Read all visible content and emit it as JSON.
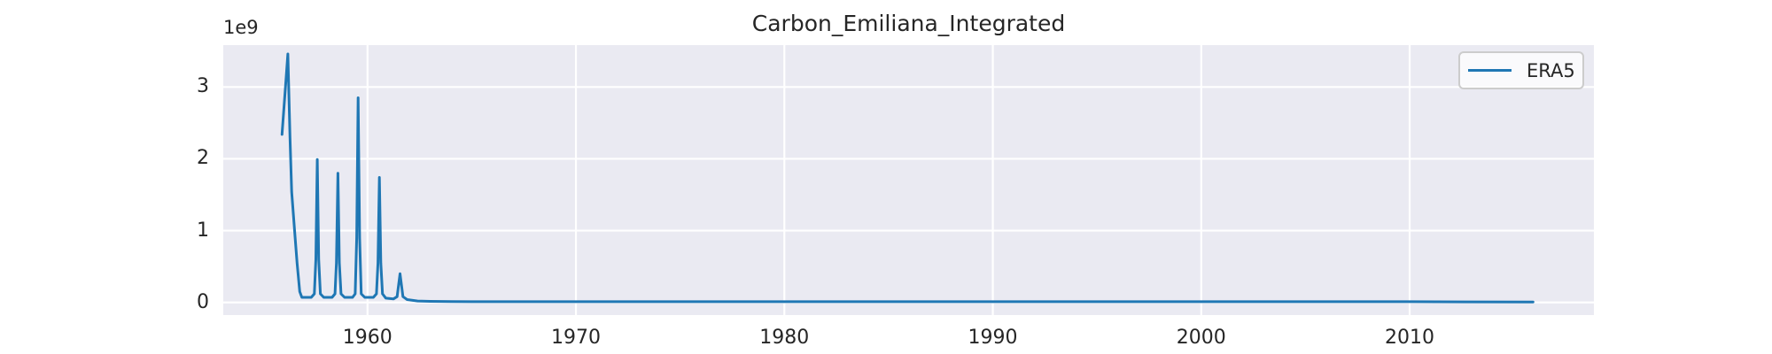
{
  "chart": {
    "title": "Carbon_Emiliana_Integrated",
    "y_offset_label": "1e9"
  },
  "colors": {
    "line": "#1f77b4",
    "axes_background": "#eaeaf2",
    "grid": "#ffffff",
    "text": "#262626",
    "legend_border": "#cccccc",
    "figure_background": "#ffffff"
  },
  "chart_data": {
    "type": "line",
    "title": "Carbon_Emiliana_Integrated",
    "xlabel": "",
    "ylabel": "",
    "y_offset_label": "1e9",
    "y_unit_multiplier": 1000000000,
    "xlim": [
      1953.08,
      2018.84
    ],
    "ylim": [
      -0.176,
      3.583
    ],
    "xticks": [
      1960,
      1970,
      1980,
      1990,
      2000,
      2010
    ],
    "xtick_labels": [
      "1960",
      "1970",
      "1980",
      "1990",
      "2000",
      "2010"
    ],
    "yticks": [
      0,
      1,
      2,
      3
    ],
    "ytick_labels": [
      "0",
      "1",
      "2",
      "3"
    ],
    "grid": true,
    "legend_position": "upper right",
    "series": [
      {
        "name": "ERA5",
        "color": "#1f77b4",
        "points_units_of_1e9": true,
        "points": [
          [
            1955.9,
            2.34
          ],
          [
            1956.18,
            3.46
          ],
          [
            1956.28,
            2.3
          ],
          [
            1956.36,
            1.54
          ],
          [
            1956.5,
            1.0
          ],
          [
            1956.62,
            0.55
          ],
          [
            1956.75,
            0.15
          ],
          [
            1956.85,
            0.07
          ],
          [
            1957.3,
            0.07
          ],
          [
            1957.45,
            0.12
          ],
          [
            1957.52,
            0.6
          ],
          [
            1957.59,
            1.99
          ],
          [
            1957.66,
            0.6
          ],
          [
            1957.74,
            0.12
          ],
          [
            1957.9,
            0.07
          ],
          [
            1958.3,
            0.07
          ],
          [
            1958.44,
            0.12
          ],
          [
            1958.51,
            0.55
          ],
          [
            1958.58,
            1.8
          ],
          [
            1958.65,
            0.55
          ],
          [
            1958.73,
            0.12
          ],
          [
            1958.9,
            0.07
          ],
          [
            1959.28,
            0.07
          ],
          [
            1959.41,
            0.12
          ],
          [
            1959.48,
            0.9
          ],
          [
            1959.55,
            2.85
          ],
          [
            1959.62,
            0.9
          ],
          [
            1959.7,
            0.12
          ],
          [
            1959.87,
            0.07
          ],
          [
            1960.28,
            0.07
          ],
          [
            1960.43,
            0.12
          ],
          [
            1960.5,
            0.55
          ],
          [
            1960.57,
            1.74
          ],
          [
            1960.64,
            0.55
          ],
          [
            1960.72,
            0.12
          ],
          [
            1960.88,
            0.06
          ],
          [
            1961.25,
            0.05
          ],
          [
            1961.42,
            0.08
          ],
          [
            1961.56,
            0.4
          ],
          [
            1961.7,
            0.08
          ],
          [
            1961.9,
            0.04
          ],
          [
            1962.4,
            0.02
          ],
          [
            1963.0,
            0.015
          ],
          [
            1965.0,
            0.01
          ],
          [
            1970.0,
            0.01
          ],
          [
            1980.0,
            0.01
          ],
          [
            1990.0,
            0.01
          ],
          [
            2000.0,
            0.01
          ],
          [
            2010.0,
            0.01
          ],
          [
            2015.92,
            0.005
          ]
        ]
      }
    ]
  }
}
